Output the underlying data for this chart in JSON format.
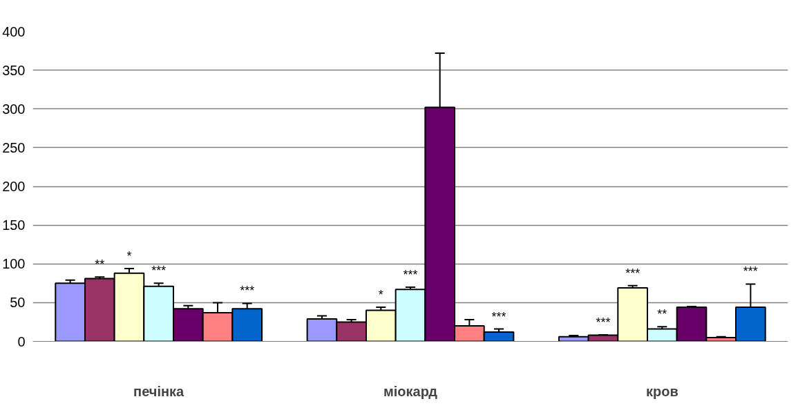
{
  "chart_data": {
    "type": "bar",
    "categories": [
      "печінка",
      "міокард",
      "кров"
    ],
    "series": [
      {
        "color": "#9999ff",
        "values": [
          75,
          29,
          6
        ],
        "errors": [
          4,
          4,
          1.5
        ]
      },
      {
        "color": "#993366",
        "values": [
          81,
          25,
          8
        ],
        "errors": [
          2,
          3,
          0.5
        ],
        "value_labels": [
          "**",
          null,
          "***"
        ]
      },
      {
        "color": "#ffffcc",
        "values": [
          88,
          40,
          69
        ],
        "errors": [
          6,
          4,
          3
        ],
        "value_labels": [
          "*",
          "*",
          "***"
        ]
      },
      {
        "color": "#ccffff",
        "values": [
          71,
          67,
          16
        ],
        "errors": [
          4,
          3,
          3
        ],
        "value_labels": [
          "***",
          "***",
          "**"
        ]
      },
      {
        "color": "#660066",
        "values": [
          42,
          302,
          44
        ],
        "errors": [
          4,
          70,
          1
        ]
      },
      {
        "color": "#ff8080",
        "values": [
          37,
          20,
          5
        ],
        "errors": [
          13,
          8,
          1
        ]
      },
      {
        "color": "#0066cc",
        "values": [
          42,
          12,
          44
        ],
        "errors": [
          7,
          4,
          30
        ],
        "value_labels": [
          "***",
          "***",
          "***"
        ]
      }
    ],
    "ylim": [
      0,
      400
    ],
    "yticks": [
      0,
      50,
      100,
      150,
      200,
      250,
      300,
      350,
      400
    ],
    "grid": "y"
  }
}
